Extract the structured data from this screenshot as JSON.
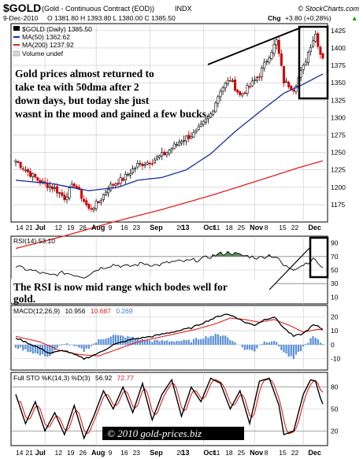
{
  "header": {
    "symbol": "$GOLD",
    "description": "(Gold - Continuous Contract (EOD))",
    "exchange": "INDX",
    "watermark": "© StockCharts.com",
    "date": "9-Dec-2010",
    "quote": "O 1381.80  H 1393.80  L 1380.00  C 1385.50",
    "chg_label": "Chg",
    "chg_value": "+3.80 (+0.28%)",
    "chg_arrow": "▲"
  },
  "price_panel": {
    "legend_main": "$GOLD (Daily) 1385.50",
    "legend_ma50": "MA(50) 1362.62",
    "legend_ma200": "MA(200) 1237.92",
    "legend_volume": "Volume undef",
    "annotation": "Gold prices almost returned to take tea with 50dma after 2 down days, but today she just wasnt in the mood and gained a few bucks.",
    "y_ticks": [
      "1425",
      "1400",
      "1375",
      "1350",
      "1325",
      "1300",
      "1275",
      "1250",
      "1225",
      "1200",
      "1175"
    ]
  },
  "date_axis": {
    "day_labels": [
      "14",
      "21",
      "12",
      "19",
      "26",
      "9",
      "16",
      "23",
      "20",
      "11",
      "18",
      "25",
      "8",
      "15",
      "22"
    ],
    "month_labels": [
      "Jul",
      "Aug",
      "Sep",
      "13",
      "Oct",
      "Nov",
      "Dec"
    ]
  },
  "rsi_panel": {
    "legend": "RSI(14) 53.10",
    "annotation": "The RSI is now mid range which bodes well for gold.",
    "y_ticks": [
      "90",
      "70",
      "50",
      "30",
      "10"
    ]
  },
  "macd_panel": {
    "legend_prefix": "MACD(12,26,9)",
    "legend_macd": "10.956",
    "legend_signal": "10.687",
    "legend_hist": "0.269",
    "y_ticks": [
      "20",
      "10",
      "0",
      "-10"
    ]
  },
  "sto_panel": {
    "legend_prefix": "Full STO %K(14,3) %D(3)",
    "legend_k": "56.92",
    "legend_d": "72.77",
    "y_ticks": [
      "80",
      "50",
      "20"
    ],
    "watermark": "© 2010 gold-prices.biz"
  },
  "colors": {
    "up": "#000000",
    "down": "#d00000",
    "ma50": "#1a2c9c",
    "ma200": "#e02020",
    "rsi_fill": "#5a8a5a",
    "macd_hist": "#5b8fd8",
    "grid": "#c8c8c8",
    "note_box": "#000000"
  },
  "chart_data": [
    {
      "type": "candlestick",
      "title": "$GOLD (Daily)",
      "x": [
        "Jun 14",
        "Jun 21",
        "Jul 12",
        "Jul 19",
        "Jul 26",
        "Aug 9",
        "Aug 16",
        "Aug 23",
        "Sep 13",
        "Sep 20",
        "Oct 11",
        "Oct 18",
        "Oct 25",
        "Nov 8",
        "Nov 15",
        "Nov 22",
        "Dec 9"
      ],
      "close_approx": [
        1238,
        1212,
        1210,
        1198,
        1170,
        1205,
        1228,
        1232,
        1272,
        1278,
        1355,
        1340,
        1340,
        1412,
        1346,
        1368,
        1385.5
      ],
      "series": [
        {
          "name": "MA(50)",
          "last": 1362.62
        },
        {
          "name": "MA(200)",
          "last": 1237.92
        }
      ],
      "ylim": [
        1150,
        1435
      ]
    },
    {
      "type": "line",
      "title": "RSI(14)",
      "series": [
        {
          "name": "RSI(14)",
          "last": 53.1
        }
      ],
      "ylim": [
        0,
        100
      ]
    },
    {
      "type": "line",
      "title": "MACD(12,26,9)",
      "series": [
        {
          "name": "MACD",
          "last": 10.956
        },
        {
          "name": "Signal",
          "last": 10.687
        },
        {
          "name": "Histogram",
          "last": 0.269
        }
      ],
      "ylim": [
        -18,
        28
      ]
    },
    {
      "type": "line",
      "title": "Full STO %K(14,3) %D(3)",
      "series": [
        {
          "name": "%K",
          "last": 56.92
        },
        {
          "name": "%D",
          "last": 72.77
        }
      ],
      "ylim": [
        0,
        100
      ]
    }
  ]
}
